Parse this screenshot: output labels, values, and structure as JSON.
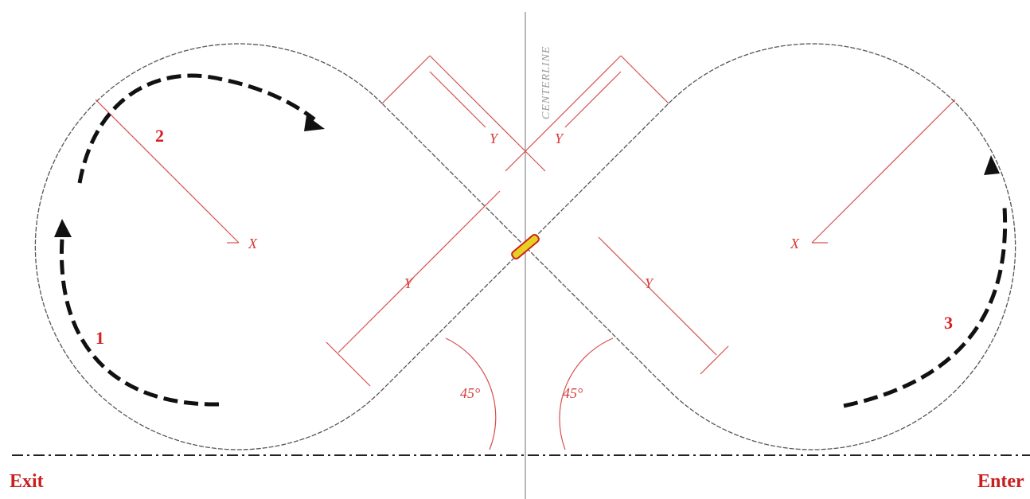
{
  "diagram": {
    "centerline": "CENTERLINE",
    "dimensions": [
      "Y",
      "Y",
      "Y",
      "Y"
    ],
    "radii": [
      "X",
      "X"
    ],
    "angles": [
      "45°",
      "45°"
    ],
    "steps": [
      "1",
      "2",
      "3"
    ],
    "exit": "Exit",
    "enter": "Enter"
  }
}
